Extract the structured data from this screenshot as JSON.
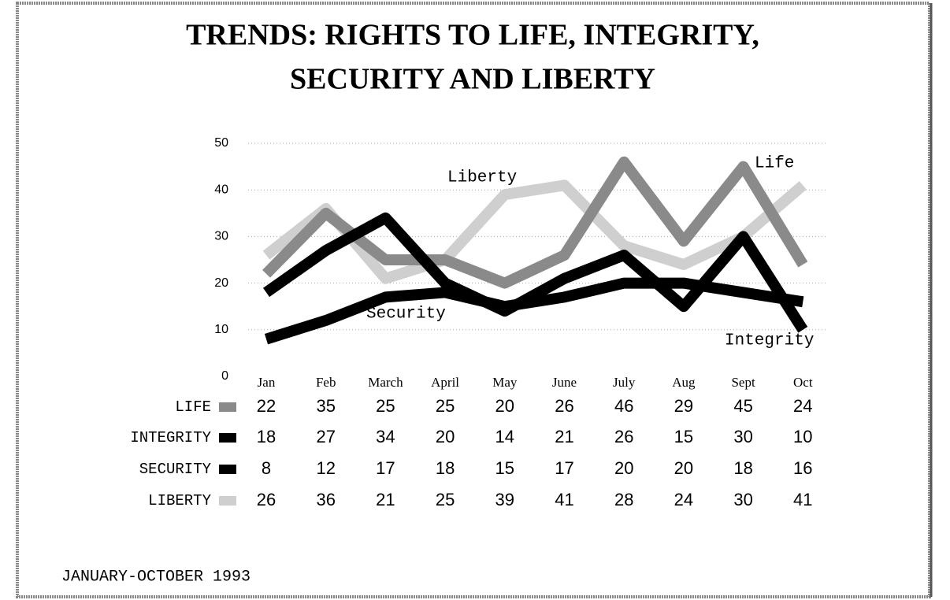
{
  "chart_data": {
    "type": "line",
    "title": [
      "TRENDS:  RIGHTS TO LIFE, INTEGRITY,",
      "SECURITY AND LIBERTY"
    ],
    "categories": [
      "Jan",
      "Feb",
      "March",
      "April",
      "May",
      "June",
      "July",
      "Aug",
      "Sept",
      "Oct"
    ],
    "series": [
      {
        "name": "LIFE",
        "color": "#8a8a8a",
        "values": [
          22,
          35,
          25,
          25,
          20,
          26,
          46,
          29,
          45,
          24
        ]
      },
      {
        "name": "INTEGRITY",
        "color": "#000000",
        "values": [
          18,
          27,
          34,
          20,
          14,
          21,
          26,
          15,
          30,
          10
        ]
      },
      {
        "name": "SECURITY",
        "color": "#000000",
        "values": [
          8,
          12,
          17,
          18,
          15,
          17,
          20,
          20,
          18,
          16
        ]
      },
      {
        "name": "LIBERTY",
        "color": "#cfcfcf",
        "values": [
          26,
          36,
          21,
          25,
          39,
          41,
          28,
          24,
          30,
          41
        ]
      }
    ],
    "annotations": [
      "Liberty",
      "Life",
      "Security",
      "Integrity"
    ],
    "ylim": [
      0,
      50
    ],
    "yticks": [
      0,
      10,
      20,
      30,
      40,
      50
    ],
    "grid": true,
    "footer": "JANUARY-OCTOBER 1993"
  }
}
